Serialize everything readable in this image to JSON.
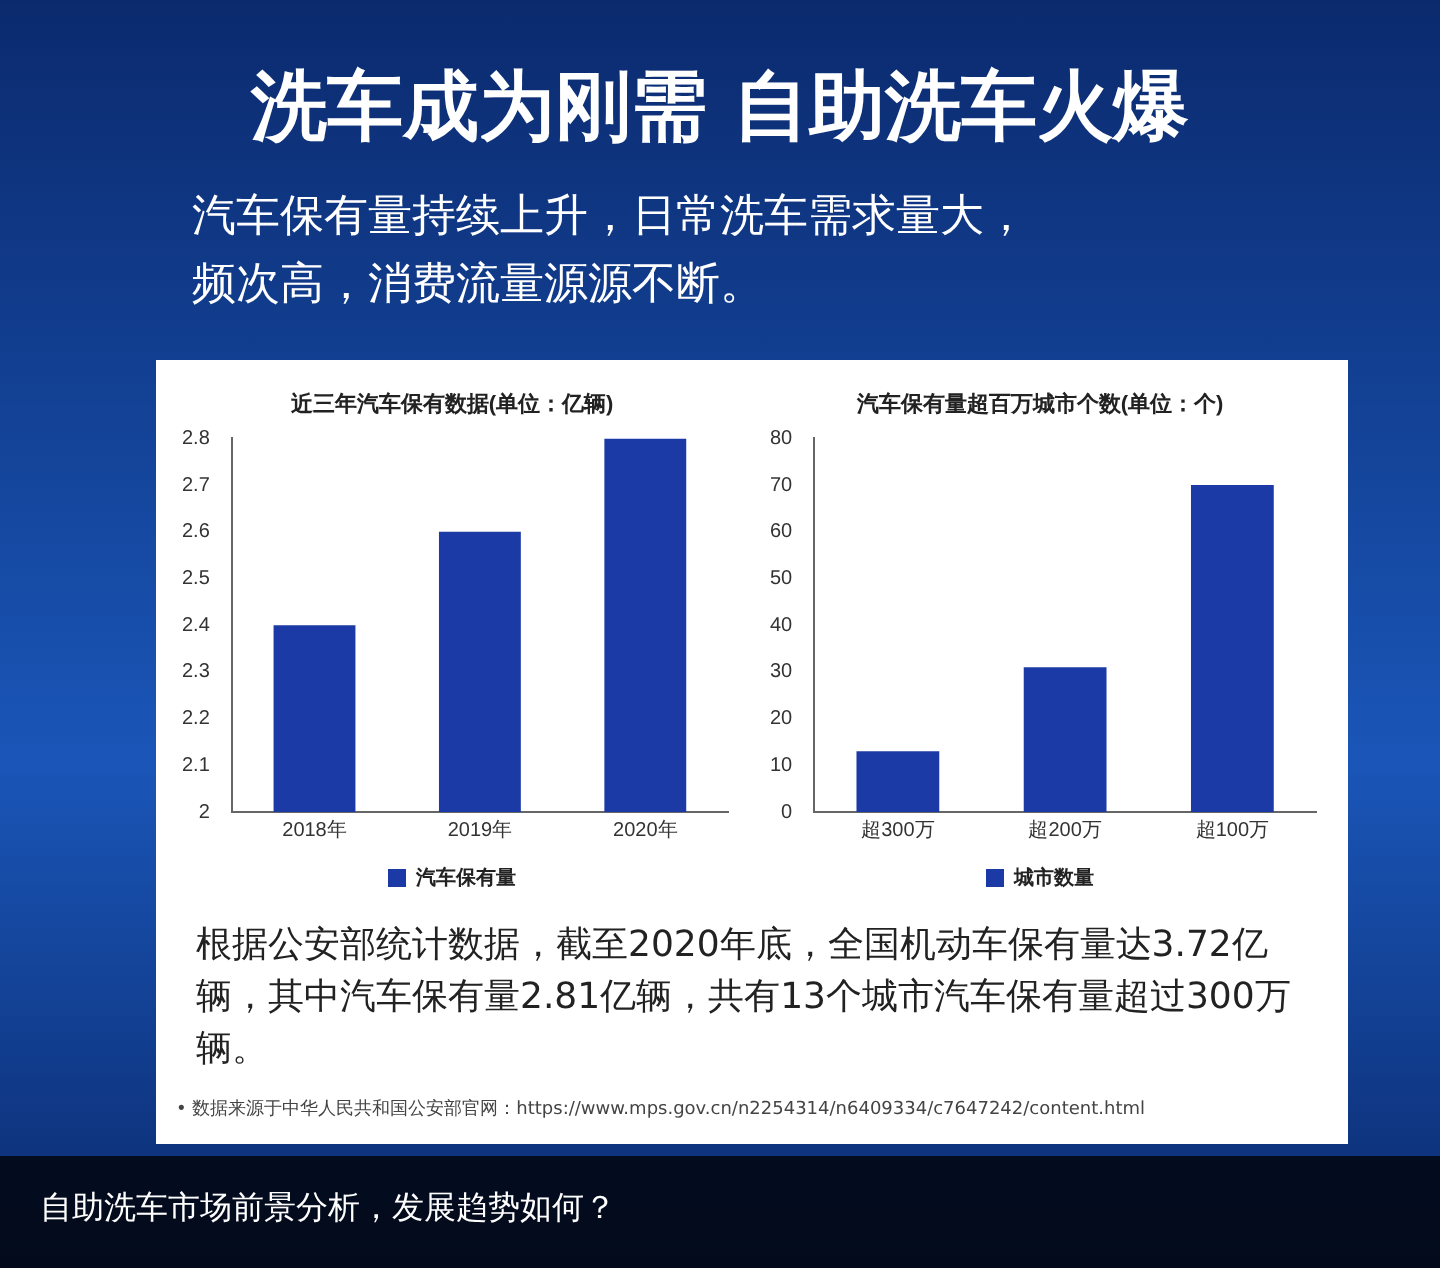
{
  "chart_data": [
    {
      "type": "bar",
      "title": "近三年汽车保有数据(单位：亿辆)",
      "categories": [
        "2018年",
        "2019年",
        "2020年"
      ],
      "series": [
        {
          "name": "汽车保有量",
          "color": "#1c3aa6",
          "values": [
            2.4,
            2.6,
            2.8
          ]
        }
      ],
      "ylim": [
        2,
        2.8
      ],
      "yticks": [
        2,
        2.1,
        2.2,
        2.3,
        2.4,
        2.5,
        2.6,
        2.7,
        2.8
      ],
      "grid": false,
      "legend": "bottom",
      "annotations": [
        "洗车成为刚需 自助洗车火爆",
        "汽车保有量持续上升，日常洗车需求量大，频次高，消费流量源源不断。",
        "根据公安部统计数据，截至2020年底，全国机动车保有量达3.72亿辆，其中汽车保有量2.81亿辆，共有13个城市汽车保有量超过300万辆。",
        "• 数据来源于中华人民共和国公安部官网：https://www.mps.gov.cn/n2254314/n6409334/c7647242/content.html",
        "自助洗车市场前景分析，发展趋势如何？"
      ]
    },
    {
      "type": "bar",
      "title": "汽车保有量超百万城市个数(单位：个)",
      "categories": [
        "超300万",
        "超200万",
        "超100万"
      ],
      "series": [
        {
          "name": "城市数量",
          "color": "#1c3aa6",
          "values": [
            13,
            31,
            70
          ]
        }
      ],
      "ylim": [
        0,
        80
      ],
      "yticks": [
        0,
        10,
        20,
        30,
        40,
        50,
        60,
        70,
        80
      ],
      "grid": false,
      "legend": "bottom"
    }
  ]
}
